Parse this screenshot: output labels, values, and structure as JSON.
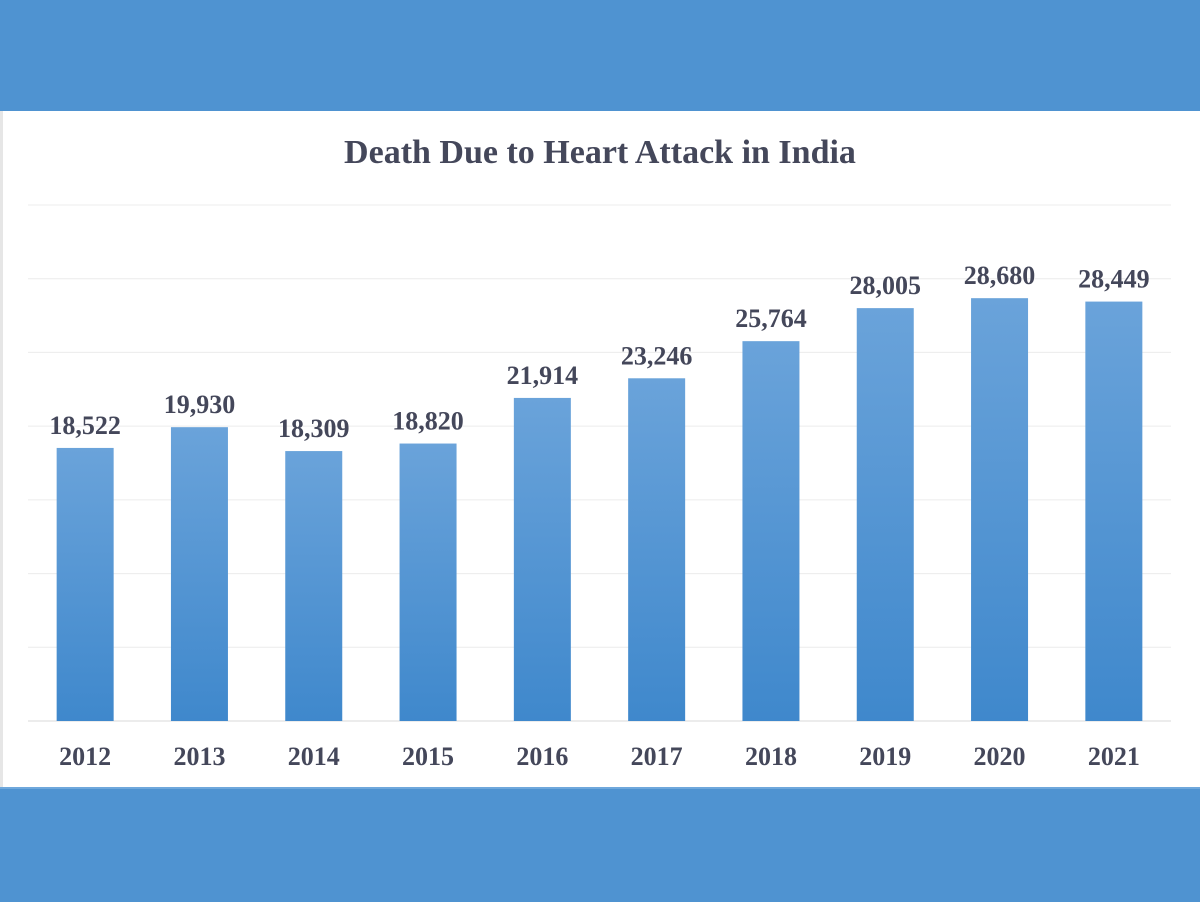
{
  "chart_data": {
    "type": "bar",
    "title": "Death Due to Heart Attack in India",
    "categories": [
      "2012",
      "2013",
      "2014",
      "2015",
      "2016",
      "2017",
      "2018",
      "2019",
      "2020",
      "2021"
    ],
    "values": [
      18522,
      19930,
      18309,
      18820,
      21914,
      23246,
      25764,
      28005,
      28680,
      28449
    ],
    "value_labels": [
      "18,522",
      "19,930",
      "18,309",
      "18,820",
      "21,914",
      "23,246",
      "25,764",
      "28,005",
      "28,680",
      "28,449"
    ],
    "xlabel": "",
    "ylabel": "",
    "ylim": [
      0,
      35000
    ],
    "grid": true,
    "y_axis_labels_shown": false,
    "colors": {
      "bar_top": "#6aa3da",
      "bar_bottom": "#3f88cc",
      "band": "#4f93d1",
      "text": "#44475a"
    }
  }
}
